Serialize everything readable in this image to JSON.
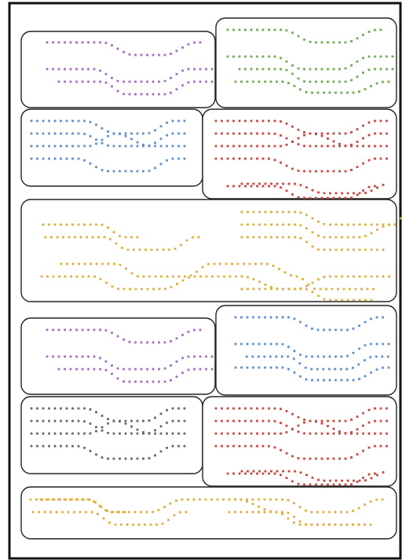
{
  "colors": {
    "purple": "#a66bc9",
    "green": "#6faa4f",
    "blue": "#5b8fcf",
    "red": "#c9453e",
    "yellow": "#e0ad3a",
    "gray": "#666666"
  },
  "panels": [
    {
      "id": "p1",
      "color": "purple",
      "pattern": "twin-wave"
    },
    {
      "id": "p2",
      "color": "green",
      "pattern": "twin-wave"
    },
    {
      "id": "p3",
      "color": "blue",
      "pattern": "braided-lines"
    },
    {
      "id": "p4",
      "color": "red",
      "pattern": "braided-lines"
    },
    {
      "id": "p5",
      "color": "yellow",
      "pattern": "twin-wave-wide"
    },
    {
      "id": "p6",
      "color": "purple",
      "pattern": "twin-wave"
    },
    {
      "id": "p7",
      "color": "blue",
      "pattern": "twin-wave"
    },
    {
      "id": "p8",
      "color": "gray",
      "pattern": "braided-lines"
    },
    {
      "id": "p9",
      "color": "red",
      "pattern": "braided-lines"
    },
    {
      "id": "p10",
      "color": "yellow",
      "pattern": "twin-wave-wide"
    }
  ]
}
